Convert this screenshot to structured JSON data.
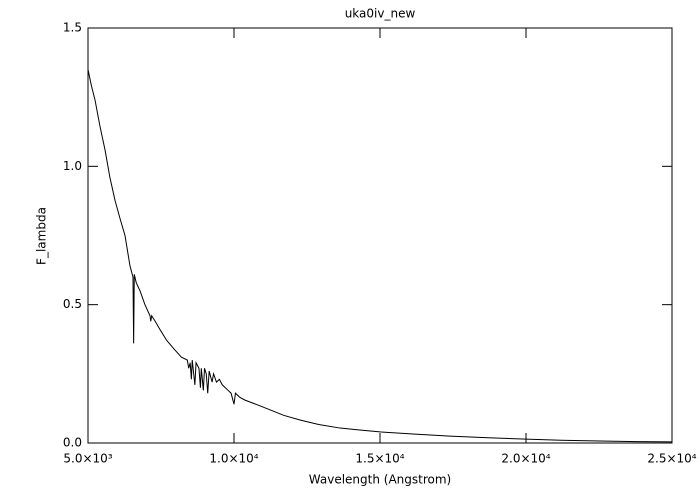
{
  "chart_data": {
    "type": "line",
    "title": "uka0iv_new",
    "x_label": "Wavelength (Angstrom)",
    "y_label": "F_lambda",
    "x": [
      5000,
      5120,
      5240,
      5400,
      5582,
      5750,
      5925,
      6100,
      6267,
      6438,
      6540,
      6563,
      6585,
      6650,
      6781,
      6950,
      7123,
      7150,
      7180,
      7300,
      7466,
      7700,
      7979,
      8200,
      8400,
      8450,
      8500,
      8540,
      8570,
      8660,
      8700,
      8800,
      8850,
      8880,
      8950,
      8990,
      9050,
      9100,
      9150,
      9250,
      9300,
      9400,
      9500,
      9600,
      9700,
      9800,
      9900,
      10000,
      10050,
      10200,
      10377,
      10800,
      11233,
      11700,
      12260,
      12900,
      13630,
      14300,
      15000,
      16200,
      17397,
      18700,
      20000,
      21200,
      22534,
      23800,
      25000
    ],
    "series": [
      {
        "name": "uka0iv_new",
        "color": "#000000",
        "values": [
          1.35,
          1.29,
          1.24,
          1.15,
          1.06,
          0.96,
          0.877,
          0.81,
          0.75,
          0.64,
          0.6,
          0.36,
          0.61,
          0.58,
          0.55,
          0.5,
          0.46,
          0.44,
          0.46,
          0.44,
          0.41,
          0.37,
          0.336,
          0.31,
          0.3,
          0.27,
          0.29,
          0.23,
          0.3,
          0.21,
          0.29,
          0.27,
          0.2,
          0.27,
          0.19,
          0.27,
          0.25,
          0.18,
          0.26,
          0.22,
          0.25,
          0.22,
          0.23,
          0.21,
          0.2,
          0.19,
          0.18,
          0.14,
          0.18,
          0.165,
          0.155,
          0.138,
          0.12,
          0.1,
          0.083,
          0.067,
          0.054,
          0.047,
          0.04,
          0.032,
          0.025,
          0.019,
          0.014,
          0.01,
          0.007,
          0.005,
          0.004
        ]
      }
    ],
    "xlim": [
      5000,
      25000
    ],
    "xticks": [
      {
        "value": 5000,
        "label": "5.0×10³"
      },
      {
        "value": 10000,
        "label": "1.0×10⁴"
      },
      {
        "value": 15000,
        "label": "1.5×10⁴"
      },
      {
        "value": 20000,
        "label": "2.0×10⁴"
      },
      {
        "value": 25000,
        "label": "2.5×10⁴"
      }
    ],
    "ylim": [
      0,
      1.5
    ],
    "yticks": [
      {
        "value": 0,
        "label": "0.0"
      },
      {
        "value": 0.5,
        "label": "0.5"
      },
      {
        "value": 1,
        "label": "1.0"
      },
      {
        "value": 1.5,
        "label": "1.5"
      }
    ],
    "grid": false
  }
}
